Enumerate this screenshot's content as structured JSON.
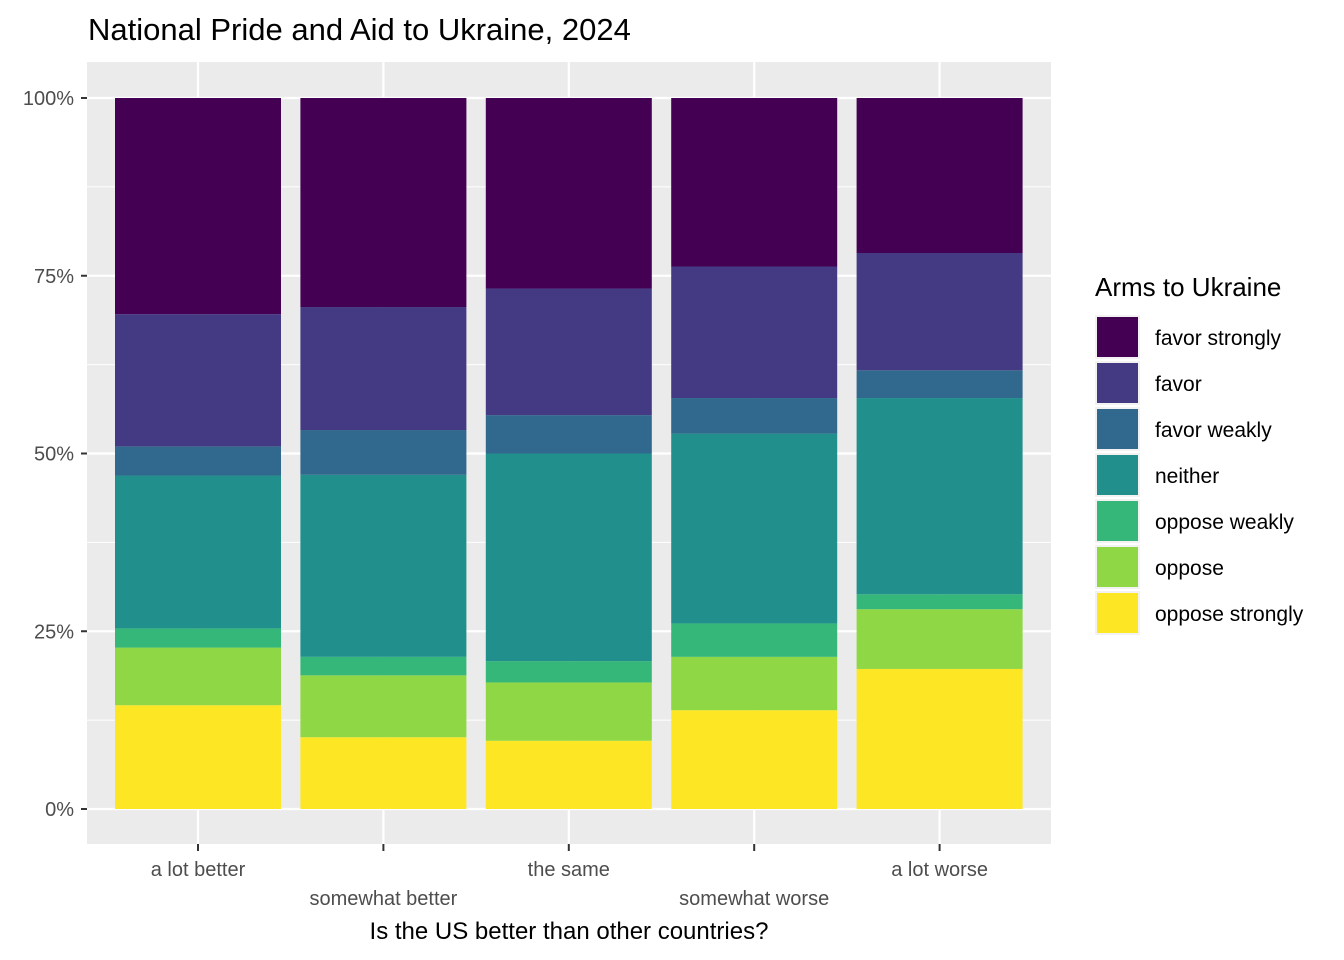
{
  "chart_data": {
    "type": "bar",
    "stacked": "percent",
    "title": "National Pride and Aid to Ukraine, 2024",
    "xlabel": "Is the US better than other countries?",
    "ylabel": "",
    "ylim": [
      0,
      1
    ],
    "y_ticks": [
      0,
      0.25,
      0.5,
      0.75,
      1.0
    ],
    "y_tick_labels": [
      "0%",
      "25%",
      "50%",
      "75%",
      "100%"
    ],
    "grid": true,
    "legend_title": "Arms to Ukraine",
    "legend_position": "right",
    "categories": [
      "a lot better",
      "somewhat better",
      "the same",
      "somewhat worse",
      "a lot worse"
    ],
    "series": [
      {
        "name": "oppose strongly",
        "color": "#FDE725",
        "values": [
          0.146,
          0.101,
          0.096,
          0.139,
          0.197
        ]
      },
      {
        "name": "oppose",
        "color": "#8FD744",
        "values": [
          0.081,
          0.087,
          0.082,
          0.075,
          0.084
        ]
      },
      {
        "name": "oppose weakly",
        "color": "#35B779",
        "values": [
          0.027,
          0.026,
          0.03,
          0.047,
          0.021
        ]
      },
      {
        "name": "neither",
        "color": "#21908C",
        "values": [
          0.215,
          0.256,
          0.292,
          0.267,
          0.276
        ]
      },
      {
        "name": "favor weakly",
        "color": "#31688E",
        "values": [
          0.041,
          0.063,
          0.054,
          0.05,
          0.039
        ]
      },
      {
        "name": "favor",
        "color": "#443A83",
        "values": [
          0.186,
          0.173,
          0.178,
          0.185,
          0.165
        ]
      },
      {
        "name": "favor strongly",
        "color": "#440154",
        "values": [
          0.304,
          0.294,
          0.268,
          0.237,
          0.218
        ]
      }
    ]
  }
}
